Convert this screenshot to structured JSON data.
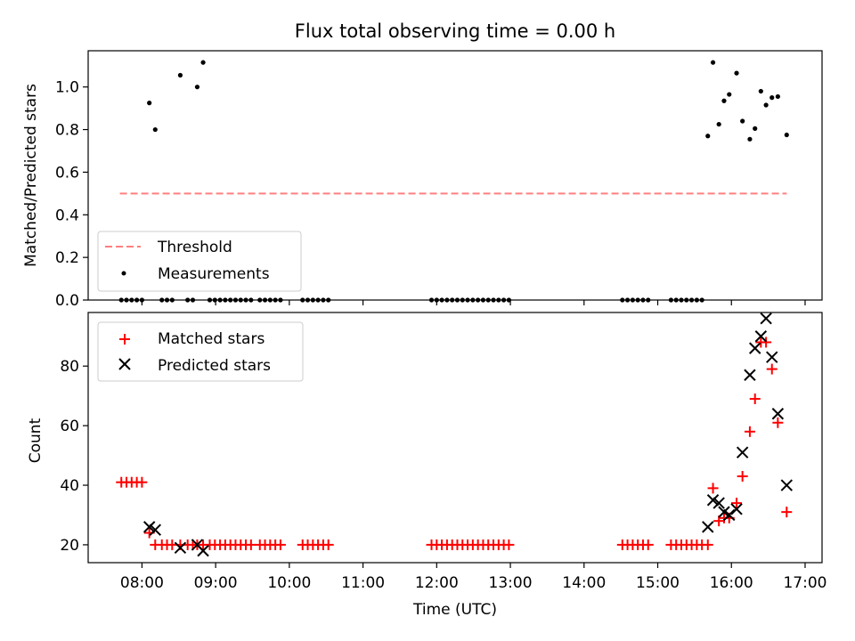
{
  "chart_data": [
    {
      "type": "scatter",
      "title": "Flux total observing time = 0.00 h",
      "xlabel": "",
      "ylabel": "Matched/Predicted stars",
      "xlim": [
        7.27,
        17.23
      ],
      "ylim": [
        0,
        1.17
      ],
      "yticks": [
        0.0,
        0.2,
        0.4,
        0.6,
        0.8,
        1.0
      ],
      "ytick_labels": [
        "0.0",
        "0.2",
        "0.4",
        "0.6",
        "0.8",
        "1.0"
      ],
      "threshold": {
        "label": "Threshold",
        "value": 0.5,
        "x_range": [
          7.7,
          16.75
        ],
        "color": "#ff7f7f"
      },
      "series": [
        {
          "name": "Measurements",
          "color": "#000000",
          "points": [
            [
              7.72,
              0
            ],
            [
              7.79,
              0
            ],
            [
              7.86,
              0
            ],
            [
              7.93,
              0
            ],
            [
              8.0,
              0
            ],
            [
              8.1,
              0.925
            ],
            [
              8.18,
              0.8
            ],
            [
              8.27,
              0
            ],
            [
              8.34,
              0
            ],
            [
              8.41,
              0
            ],
            [
              8.52,
              1.055
            ],
            [
              8.62,
              0
            ],
            [
              8.69,
              0
            ],
            [
              8.75,
              1.0
            ],
            [
              8.83,
              1.115
            ],
            [
              8.92,
              0
            ],
            [
              8.99,
              0
            ],
            [
              9.06,
              0
            ],
            [
              9.13,
              0
            ],
            [
              9.2,
              0
            ],
            [
              9.27,
              0
            ],
            [
              9.34,
              0
            ],
            [
              9.41,
              0
            ],
            [
              9.48,
              0
            ],
            [
              9.6,
              0
            ],
            [
              9.67,
              0
            ],
            [
              9.74,
              0
            ],
            [
              9.81,
              0
            ],
            [
              9.88,
              0
            ],
            [
              10.18,
              0
            ],
            [
              10.25,
              0
            ],
            [
              10.32,
              0
            ],
            [
              10.39,
              0
            ],
            [
              10.46,
              0
            ],
            [
              10.53,
              0
            ],
            [
              11.93,
              0
            ],
            [
              12.0,
              0
            ],
            [
              12.07,
              0
            ],
            [
              12.14,
              0
            ],
            [
              12.21,
              0
            ],
            [
              12.28,
              0
            ],
            [
              12.35,
              0
            ],
            [
              12.42,
              0
            ],
            [
              12.49,
              0
            ],
            [
              12.56,
              0
            ],
            [
              12.63,
              0
            ],
            [
              12.7,
              0
            ],
            [
              12.77,
              0
            ],
            [
              12.84,
              0
            ],
            [
              12.91,
              0
            ],
            [
              12.98,
              0
            ],
            [
              14.52,
              0
            ],
            [
              14.59,
              0
            ],
            [
              14.66,
              0
            ],
            [
              14.73,
              0
            ],
            [
              14.8,
              0
            ],
            [
              14.87,
              0
            ],
            [
              15.18,
              0
            ],
            [
              15.25,
              0
            ],
            [
              15.32,
              0
            ],
            [
              15.39,
              0
            ],
            [
              15.46,
              0
            ],
            [
              15.53,
              0
            ],
            [
              15.6,
              0
            ],
            [
              15.68,
              0.77
            ],
            [
              15.75,
              1.115
            ],
            [
              15.83,
              0.825
            ],
            [
              15.9,
              0.935
            ],
            [
              15.97,
              0.965
            ],
            [
              16.07,
              1.065
            ],
            [
              16.15,
              0.84
            ],
            [
              16.25,
              0.755
            ],
            [
              16.32,
              0.805
            ],
            [
              16.4,
              0.98
            ],
            [
              16.47,
              0.915
            ],
            [
              16.55,
              0.95
            ],
            [
              16.63,
              0.955
            ],
            [
              16.75,
              0.775
            ]
          ]
        }
      ],
      "legend": {
        "location": "lower-left",
        "entries": [
          "Threshold",
          "Measurements"
        ]
      }
    },
    {
      "type": "scatter",
      "title": "",
      "xlabel": "Time (UTC)",
      "ylabel": "Count",
      "xlim": [
        7.27,
        17.23
      ],
      "ylim": [
        14,
        98
      ],
      "yticks": [
        20,
        40,
        60,
        80
      ],
      "ytick_labels": [
        "20",
        "40",
        "60",
        "80"
      ],
      "xticks": [
        8,
        9,
        10,
        11,
        12,
        13,
        14,
        15,
        16,
        17
      ],
      "xtick_labels": [
        "08:00",
        "09:00",
        "10:00",
        "11:00",
        "12:00",
        "13:00",
        "14:00",
        "15:00",
        "16:00",
        "17:00"
      ],
      "series": [
        {
          "name": "Matched stars",
          "marker": "plus",
          "color": "#ff0000",
          "points": [
            [
              7.72,
              41
            ],
            [
              7.79,
              41
            ],
            [
              7.86,
              41
            ],
            [
              7.93,
              41
            ],
            [
              8.0,
              41
            ],
            [
              8.1,
              24
            ],
            [
              8.18,
              20
            ],
            [
              8.27,
              20
            ],
            [
              8.34,
              20
            ],
            [
              8.41,
              20
            ],
            [
              8.52,
              20
            ],
            [
              8.62,
              20
            ],
            [
              8.69,
              20
            ],
            [
              8.75,
              20
            ],
            [
              8.83,
              20
            ],
            [
              8.92,
              20
            ],
            [
              8.99,
              20
            ],
            [
              9.06,
              20
            ],
            [
              9.13,
              20
            ],
            [
              9.2,
              20
            ],
            [
              9.27,
              20
            ],
            [
              9.34,
              20
            ],
            [
              9.41,
              20
            ],
            [
              9.48,
              20
            ],
            [
              9.6,
              20
            ],
            [
              9.67,
              20
            ],
            [
              9.74,
              20
            ],
            [
              9.81,
              20
            ],
            [
              9.88,
              20
            ],
            [
              10.18,
              20
            ],
            [
              10.25,
              20
            ],
            [
              10.32,
              20
            ],
            [
              10.39,
              20
            ],
            [
              10.46,
              20
            ],
            [
              10.53,
              20
            ],
            [
              11.93,
              20
            ],
            [
              12.0,
              20
            ],
            [
              12.07,
              20
            ],
            [
              12.14,
              20
            ],
            [
              12.21,
              20
            ],
            [
              12.28,
              20
            ],
            [
              12.35,
              20
            ],
            [
              12.42,
              20
            ],
            [
              12.49,
              20
            ],
            [
              12.56,
              20
            ],
            [
              12.63,
              20
            ],
            [
              12.7,
              20
            ],
            [
              12.77,
              20
            ],
            [
              12.84,
              20
            ],
            [
              12.91,
              20
            ],
            [
              12.98,
              20
            ],
            [
              14.52,
              20
            ],
            [
              14.59,
              20
            ],
            [
              14.66,
              20
            ],
            [
              14.73,
              20
            ],
            [
              14.8,
              20
            ],
            [
              14.87,
              20
            ],
            [
              15.18,
              20
            ],
            [
              15.25,
              20
            ],
            [
              15.32,
              20
            ],
            [
              15.39,
              20
            ],
            [
              15.46,
              20
            ],
            [
              15.53,
              20
            ],
            [
              15.6,
              20
            ],
            [
              15.68,
              20
            ],
            [
              15.75,
              39
            ],
            [
              15.83,
              28
            ],
            [
              15.9,
              29
            ],
            [
              15.97,
              29
            ],
            [
              16.07,
              34
            ],
            [
              16.15,
              43
            ],
            [
              16.25,
              58
            ],
            [
              16.32,
              69
            ],
            [
              16.4,
              88
            ],
            [
              16.47,
              88
            ],
            [
              16.55,
              79
            ],
            [
              16.63,
              61
            ],
            [
              16.75,
              31
            ]
          ]
        },
        {
          "name": "Predicted stars",
          "marker": "x",
          "color": "#000000",
          "points": [
            [
              8.1,
              26
            ],
            [
              8.18,
              25
            ],
            [
              8.52,
              19
            ],
            [
              8.75,
              20
            ],
            [
              8.83,
              18
            ],
            [
              15.68,
              26
            ],
            [
              15.75,
              35
            ],
            [
              15.83,
              34
            ],
            [
              15.9,
              31
            ],
            [
              15.97,
              30
            ],
            [
              16.07,
              32
            ],
            [
              16.15,
              51
            ],
            [
              16.25,
              77
            ],
            [
              16.32,
              86
            ],
            [
              16.4,
              90
            ],
            [
              16.47,
              96
            ],
            [
              16.55,
              83
            ],
            [
              16.63,
              64
            ],
            [
              16.75,
              40
            ]
          ]
        }
      ],
      "legend": {
        "location": "upper-left",
        "entries": [
          "Matched stars",
          "Predicted stars"
        ]
      }
    }
  ]
}
